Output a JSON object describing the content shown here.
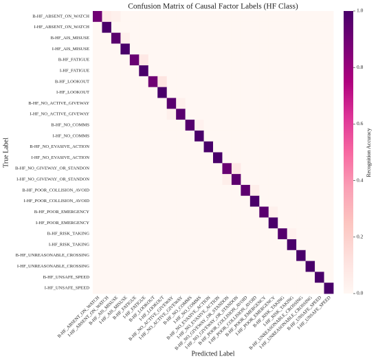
{
  "chart_data": {
    "type": "heatmap",
    "title": "Confusion Matrix of Causal Factor Labels (HF Class)",
    "x_label": "Predicted Label",
    "y_label": "True Label",
    "colorbar_label": "Recognition Accuracy",
    "colormap": "RdPu",
    "labels": [
      "B-HF_ABSENT_ON_WATCH",
      "I-HF_ABSENT_ON_WATCH",
      "B-HF_AIS_MISUSE",
      "I-HF_AIS_MISUSE",
      "B-HF_FATIGUE",
      "I-HF_FATIGUE",
      "B-HF_LOOKOUT",
      "I-HF_LOOKOUT",
      "B-HF_NO_ACTIVE_GIVEWAY",
      "I-HF_NO_ACTIVE_GIVEWAY",
      "B-HF_NO_COMMS",
      "I-HF_NO_COMMS",
      "B-HF_NO_EVASIVE_ACTION",
      "I-HF_NO_EVASIVE_ACTION",
      "B-HF_NO_GIVEWAY_OR_STANDON",
      "I-HF_NO_GIVEWAY_OR_STANDON",
      "B-HF_POOR_COLLISION_AVOID",
      "I-HF_POOR_COLLISION_AVOID",
      "B-HF_POOR_EMERGENCY",
      "I-HF_POOR_EMERGENCY",
      "B-HF_RISK_TAKING",
      "I-HF_RISK_TAKING",
      "B-HF_UNREASONABLE_CROSSING",
      "I-HF_UNREASONABLE_CROSSING",
      "B-HF_UNSAFE_SPEED",
      "I-HF_UNSAFE_SPEED"
    ],
    "matrix": [
      [
        0.9,
        0.06,
        0.04,
        0,
        0,
        0,
        0,
        0,
        0,
        0,
        0,
        0,
        0,
        0,
        0,
        0,
        0,
        0,
        0,
        0,
        0,
        0,
        0,
        0,
        0,
        0
      ],
      [
        0,
        1,
        0,
        0,
        0,
        0,
        0,
        0,
        0,
        0,
        0,
        0,
        0,
        0,
        0,
        0,
        0,
        0,
        0,
        0,
        0,
        0,
        0,
        0,
        0,
        0
      ],
      [
        0,
        0,
        0.96,
        0.04,
        0,
        0,
        0,
        0,
        0,
        0,
        0,
        0,
        0,
        0,
        0,
        0,
        0,
        0,
        0,
        0,
        0,
        0,
        0,
        0,
        0,
        0
      ],
      [
        0,
        0,
        0,
        1,
        0,
        0,
        0,
        0,
        0,
        0,
        0,
        0,
        0,
        0,
        0,
        0,
        0,
        0,
        0,
        0,
        0,
        0,
        0,
        0,
        0,
        0
      ],
      [
        0,
        0,
        0,
        0,
        0.92,
        0.08,
        0,
        0,
        0,
        0,
        0,
        0,
        0,
        0,
        0,
        0,
        0,
        0,
        0,
        0,
        0,
        0,
        0,
        0,
        0,
        0
      ],
      [
        0,
        0,
        0,
        0,
        0,
        1,
        0,
        0,
        0,
        0,
        0,
        0,
        0,
        0,
        0,
        0,
        0,
        0,
        0,
        0,
        0,
        0,
        0,
        0,
        0,
        0
      ],
      [
        0,
        0,
        0,
        0,
        0,
        0,
        0.9,
        0.1,
        0,
        0,
        0,
        0,
        0,
        0,
        0,
        0,
        0,
        0,
        0,
        0,
        0,
        0,
        0,
        0,
        0,
        0
      ],
      [
        0,
        0,
        0,
        0,
        0,
        0,
        0,
        1,
        0,
        0,
        0,
        0,
        0,
        0,
        0,
        0,
        0,
        0,
        0,
        0,
        0,
        0,
        0,
        0,
        0,
        0
      ],
      [
        0,
        0,
        0,
        0,
        0,
        0,
        0,
        0,
        0.96,
        0.04,
        0,
        0,
        0,
        0,
        0,
        0,
        0,
        0,
        0,
        0,
        0,
        0,
        0,
        0,
        0,
        0
      ],
      [
        0,
        0,
        0,
        0,
        0,
        0,
        0,
        0,
        0.04,
        0.96,
        0,
        0,
        0,
        0,
        0,
        0,
        0,
        0,
        0,
        0,
        0,
        0,
        0,
        0,
        0,
        0
      ],
      [
        0,
        0,
        0,
        0,
        0,
        0,
        0,
        0,
        0,
        0,
        0.97,
        0.03,
        0,
        0,
        0,
        0,
        0,
        0,
        0,
        0,
        0,
        0,
        0,
        0,
        0,
        0
      ],
      [
        0,
        0,
        0,
        0,
        0,
        0,
        0,
        0,
        0,
        0,
        0,
        1,
        0,
        0,
        0,
        0,
        0,
        0,
        0,
        0,
        0,
        0,
        0,
        0,
        0,
        0
      ],
      [
        0,
        0,
        0,
        0,
        0,
        0,
        0,
        0,
        0,
        0,
        0,
        0,
        1,
        0,
        0,
        0,
        0,
        0,
        0,
        0,
        0,
        0,
        0,
        0,
        0,
        0
      ],
      [
        0,
        0,
        0,
        0,
        0,
        0,
        0,
        0,
        0,
        0,
        0,
        0,
        0,
        1,
        0,
        0,
        0,
        0,
        0,
        0,
        0,
        0,
        0,
        0,
        0,
        0
      ],
      [
        0,
        0,
        0,
        0,
        0,
        0,
        0,
        0,
        0,
        0,
        0,
        0,
        0,
        0,
        0.92,
        0.08,
        0,
        0,
        0,
        0,
        0,
        0,
        0,
        0,
        0,
        0
      ],
      [
        0,
        0,
        0,
        0,
        0,
        0,
        0,
        0,
        0,
        0,
        0,
        0,
        0,
        0,
        0.05,
        0.95,
        0,
        0,
        0,
        0,
        0,
        0,
        0,
        0,
        0,
        0
      ],
      [
        0,
        0,
        0,
        0,
        0,
        0,
        0,
        0,
        0,
        0,
        0,
        0,
        0,
        0,
        0,
        0,
        0.95,
        0.05,
        0,
        0,
        0,
        0,
        0,
        0,
        0,
        0
      ],
      [
        0,
        0,
        0,
        0,
        0,
        0,
        0,
        0,
        0,
        0,
        0,
        0,
        0,
        0,
        0,
        0,
        0,
        1,
        0,
        0,
        0,
        0,
        0,
        0,
        0,
        0
      ],
      [
        0,
        0,
        0,
        0,
        0,
        0,
        0,
        0,
        0,
        0,
        0,
        0,
        0,
        0,
        0,
        0,
        0,
        0,
        0.96,
        0.04,
        0,
        0,
        0,
        0,
        0,
        0
      ],
      [
        0,
        0,
        0,
        0,
        0,
        0,
        0,
        0,
        0,
        0,
        0,
        0,
        0,
        0,
        0,
        0,
        0,
        0,
        0,
        1,
        0,
        0,
        0,
        0,
        0,
        0
      ],
      [
        0,
        0,
        0,
        0,
        0,
        0,
        0,
        0,
        0,
        0,
        0,
        0,
        0,
        0,
        0,
        0,
        0,
        0,
        0,
        0,
        0.97,
        0.03,
        0,
        0,
        0,
        0
      ],
      [
        0,
        0,
        0,
        0,
        0,
        0,
        0,
        0,
        0,
        0,
        0,
        0,
        0,
        0,
        0,
        0,
        0,
        0,
        0,
        0,
        0,
        1,
        0,
        0,
        0,
        0
      ],
      [
        0,
        0,
        0,
        0,
        0,
        0,
        0,
        0,
        0,
        0,
        0,
        0,
        0,
        0,
        0,
        0,
        0,
        0,
        0,
        0,
        0,
        0,
        1,
        0,
        0,
        0
      ],
      [
        0,
        0,
        0,
        0,
        0,
        0,
        0,
        0,
        0,
        0,
        0,
        0,
        0,
        0,
        0,
        0,
        0,
        0,
        0,
        0,
        0,
        0,
        0,
        1,
        0,
        0
      ],
      [
        0,
        0,
        0,
        0,
        0,
        0,
        0,
        0,
        0,
        0,
        0,
        0,
        0,
        0,
        0,
        0,
        0,
        0,
        0,
        0,
        0,
        0,
        0,
        0,
        1,
        0
      ],
      [
        0,
        0,
        0,
        0,
        0,
        0,
        0,
        0,
        0,
        0,
        0,
        0,
        0,
        0,
        0,
        0,
        0,
        0,
        0,
        0,
        0,
        0,
        0,
        0,
        0,
        1
      ]
    ],
    "clim": [
      0,
      1
    ],
    "cticks": [
      {
        "value": 0,
        "label": "0.0"
      },
      0.2,
      0.4,
      0.6,
      0.8,
      {
        "value": 1,
        "label": "1.0"
      }
    ]
  }
}
